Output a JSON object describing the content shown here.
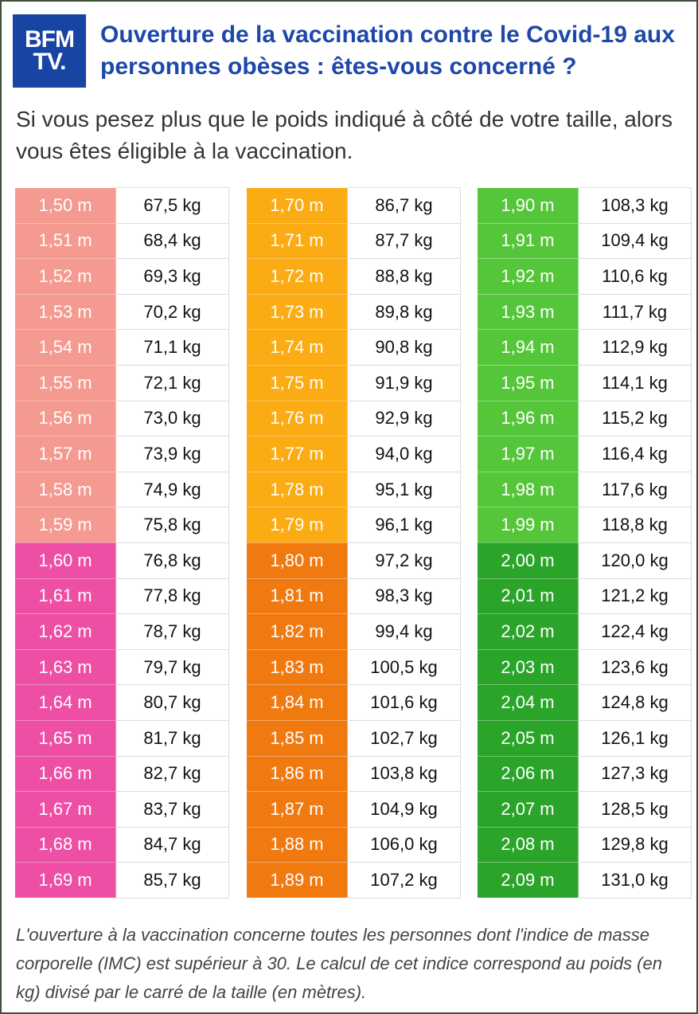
{
  "logo": {
    "line1": "BFM",
    "line2": "TV."
  },
  "title": "Ouverture de la vaccination contre le Covid-19 aux personnes obèses : êtes-vous concerné ?",
  "subtitle": "Si vous pesez plus que le poids indiqué à côté de votre taille, alors vous êtes éligible à la vaccination.",
  "colors": {
    "salmon": "#f59a90",
    "pink": "#ee4fa5",
    "light_orange": "#fbab14",
    "dark_orange": "#f07a10",
    "light_green": "#55c63a",
    "dark_green": "#2aa52a"
  },
  "columns": [
    {
      "rows": [
        {
          "h": "1,50 m",
          "w": "67,5 kg",
          "c": "#f59a90"
        },
        {
          "h": "1,51 m",
          "w": "68,4 kg",
          "c": "#f59a90"
        },
        {
          "h": "1,52 m",
          "w": "69,3 kg",
          "c": "#f59a90"
        },
        {
          "h": "1,53 m",
          "w": "70,2 kg",
          "c": "#f59a90"
        },
        {
          "h": "1,54 m",
          "w": "71,1 kg",
          "c": "#f59a90"
        },
        {
          "h": "1,55 m",
          "w": "72,1 kg",
          "c": "#f59a90"
        },
        {
          "h": "1,56 m",
          "w": "73,0 kg",
          "c": "#f59a90"
        },
        {
          "h": "1,57 m",
          "w": "73,9 kg",
          "c": "#f59a90"
        },
        {
          "h": "1,58 m",
          "w": "74,9 kg",
          "c": "#f59a90"
        },
        {
          "h": "1,59 m",
          "w": "75,8 kg",
          "c": "#f59a90"
        },
        {
          "h": "1,60 m",
          "w": "76,8 kg",
          "c": "#ee4fa5"
        },
        {
          "h": "1,61 m",
          "w": "77,8 kg",
          "c": "#ee4fa5"
        },
        {
          "h": "1,62 m",
          "w": "78,7 kg",
          "c": "#ee4fa5"
        },
        {
          "h": "1,63 m",
          "w": "79,7 kg",
          "c": "#ee4fa5"
        },
        {
          "h": "1,64 m",
          "w": "80,7 kg",
          "c": "#ee4fa5"
        },
        {
          "h": "1,65 m",
          "w": "81,7 kg",
          "c": "#ee4fa5"
        },
        {
          "h": "1,66 m",
          "w": "82,7 kg",
          "c": "#ee4fa5"
        },
        {
          "h": "1,67 m",
          "w": "83,7 kg",
          "c": "#ee4fa5"
        },
        {
          "h": "1,68 m",
          "w": "84,7 kg",
          "c": "#ee4fa5"
        },
        {
          "h": "1,69 m",
          "w": "85,7 kg",
          "c": "#ee4fa5"
        }
      ]
    },
    {
      "rows": [
        {
          "h": "1,70 m",
          "w": "86,7 kg",
          "c": "#fbab14"
        },
        {
          "h": "1,71 m",
          "w": "87,7 kg",
          "c": "#fbab14"
        },
        {
          "h": "1,72 m",
          "w": "88,8 kg",
          "c": "#fbab14"
        },
        {
          "h": "1,73 m",
          "w": "89,8 kg",
          "c": "#fbab14"
        },
        {
          "h": "1,74 m",
          "w": "90,8 kg",
          "c": "#fbab14"
        },
        {
          "h": "1,75 m",
          "w": "91,9 kg",
          "c": "#fbab14"
        },
        {
          "h": "1,76 m",
          "w": "92,9 kg",
          "c": "#fbab14"
        },
        {
          "h": "1,77 m",
          "w": "94,0 kg",
          "c": "#fbab14"
        },
        {
          "h": "1,78 m",
          "w": "95,1 kg",
          "c": "#fbab14"
        },
        {
          "h": "1,79 m",
          "w": "96,1 kg",
          "c": "#fbab14"
        },
        {
          "h": "1,80 m",
          "w": "97,2 kg",
          "c": "#f07a10"
        },
        {
          "h": "1,81 m",
          "w": "98,3 kg",
          "c": "#f07a10"
        },
        {
          "h": "1,82 m",
          "w": "99,4 kg",
          "c": "#f07a10"
        },
        {
          "h": "1,83 m",
          "w": "100,5 kg",
          "c": "#f07a10"
        },
        {
          "h": "1,84 m",
          "w": "101,6 kg",
          "c": "#f07a10"
        },
        {
          "h": "1,85 m",
          "w": "102,7 kg",
          "c": "#f07a10"
        },
        {
          "h": "1,86 m",
          "w": "103,8 kg",
          "c": "#f07a10"
        },
        {
          "h": "1,87 m",
          "w": "104,9 kg",
          "c": "#f07a10"
        },
        {
          "h": "1,88 m",
          "w": "106,0 kg",
          "c": "#f07a10"
        },
        {
          "h": "1,89 m",
          "w": "107,2 kg",
          "c": "#f07a10"
        }
      ]
    },
    {
      "rows": [
        {
          "h": "1,90 m",
          "w": "108,3 kg",
          "c": "#55c63a"
        },
        {
          "h": "1,91 m",
          "w": "109,4 kg",
          "c": "#55c63a"
        },
        {
          "h": "1,92 m",
          "w": "110,6 kg",
          "c": "#55c63a"
        },
        {
          "h": "1,93 m",
          "w": "111,7 kg",
          "c": "#55c63a"
        },
        {
          "h": "1,94 m",
          "w": "112,9 kg",
          "c": "#55c63a"
        },
        {
          "h": "1,95 m",
          "w": "114,1 kg",
          "c": "#55c63a"
        },
        {
          "h": "1,96 m",
          "w": "115,2 kg",
          "c": "#55c63a"
        },
        {
          "h": "1,97 m",
          "w": "116,4 kg",
          "c": "#55c63a"
        },
        {
          "h": "1,98 m",
          "w": "117,6 kg",
          "c": "#55c63a"
        },
        {
          "h": "1,99 m",
          "w": "118,8 kg",
          "c": "#55c63a"
        },
        {
          "h": "2,00 m",
          "w": "120,0 kg",
          "c": "#2aa52a"
        },
        {
          "h": "2,01 m",
          "w": "121,2 kg",
          "c": "#2aa52a"
        },
        {
          "h": "2,02 m",
          "w": "122,4 kg",
          "c": "#2aa52a"
        },
        {
          "h": "2,03 m",
          "w": "123,6 kg",
          "c": "#2aa52a"
        },
        {
          "h": "2,04 m",
          "w": "124,8 kg",
          "c": "#2aa52a"
        },
        {
          "h": "2,05 m",
          "w": "126,1 kg",
          "c": "#2aa52a"
        },
        {
          "h": "2,06 m",
          "w": "127,3 kg",
          "c": "#2aa52a"
        },
        {
          "h": "2,07 m",
          "w": "128,5 kg",
          "c": "#2aa52a"
        },
        {
          "h": "2,08 m",
          "w": "129,8 kg",
          "c": "#2aa52a"
        },
        {
          "h": "2,09 m",
          "w": "131,0 kg",
          "c": "#2aa52a"
        }
      ]
    }
  ],
  "footer": "L'ouverture à la vaccination concerne toutes les personnes dont l'indice de masse corporelle (IMC) est supérieur à 30. Le calcul de cet indice correspond au poids (en kg) divisé par le carré de la taille (en mètres)."
}
